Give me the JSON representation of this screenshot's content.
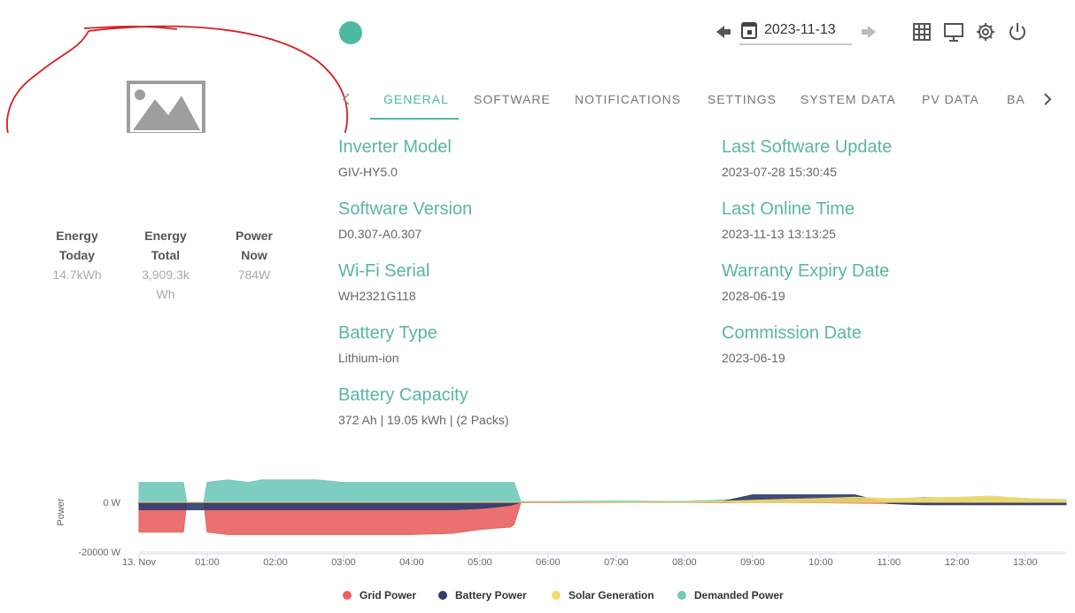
{
  "header": {
    "date": "2023-11-13"
  },
  "stats": [
    {
      "label": "Energy Today",
      "value": "14.7kWh"
    },
    {
      "label": "Energy Total",
      "value": "3,909.3kWh"
    },
    {
      "label": "Power Now",
      "value": "784W"
    }
  ],
  "tabs": [
    "GENERAL",
    "SOFTWARE",
    "NOTIFICATIONS",
    "SETTINGS",
    "SYSTEM DATA",
    "PV DATA",
    "BA"
  ],
  "info": {
    "left": [
      {
        "label": "Inverter Model",
        "value": "GIV-HY5.0"
      },
      {
        "label": "Software Version",
        "value": "D0.307-A0.307"
      },
      {
        "label": "Wi-Fi Serial",
        "value": "WH2321G118"
      },
      {
        "label": "Battery Type",
        "value": "Lithium-ion"
      },
      {
        "label": "Battery Capacity",
        "value": "372 Ah | 19.05 kWh | (2 Packs)"
      }
    ],
    "right": [
      {
        "label": "Last Software Update",
        "value": "2023-07-28 15:30:45"
      },
      {
        "label": "Last Online Time",
        "value": "2023-11-13 13:13:25"
      },
      {
        "label": "Warranty Expiry Date",
        "value": "2028-06-19"
      },
      {
        "label": "Commission Date",
        "value": "2023-06-19"
      }
    ]
  },
  "chart_data": {
    "type": "area",
    "y_label": "Power",
    "xlim": [
      0,
      13.6
    ],
    "xticks": [
      {
        "value": 0,
        "label": "13. Nov"
      },
      {
        "value": 1,
        "label": "01:00"
      },
      {
        "value": 2,
        "label": "02:00"
      },
      {
        "value": 3,
        "label": "03:00"
      },
      {
        "value": 4,
        "label": "04:00"
      },
      {
        "value": 5,
        "label": "05:00"
      },
      {
        "value": 6,
        "label": "06:00"
      },
      {
        "value": 7,
        "label": "07:00"
      },
      {
        "value": 8,
        "label": "08:00"
      },
      {
        "value": 9,
        "label": "09:00"
      },
      {
        "value": 10,
        "label": "10:00"
      },
      {
        "value": 11,
        "label": "11:00"
      },
      {
        "value": 12,
        "label": "12:00"
      },
      {
        "value": 13,
        "label": "13:00"
      }
    ],
    "ylim": [
      -20000,
      10000
    ],
    "yticks": [
      {
        "value": -20000,
        "label": "-20000 W"
      },
      {
        "value": 0,
        "label": "0 W"
      }
    ],
    "grid": true,
    "x": [
      0,
      0.25,
      0.5,
      0.65,
      0.7,
      0.95,
      1.0,
      1.3,
      1.6,
      1.8,
      2.0,
      2.6,
      3.0,
      4.0,
      4.6,
      5.0,
      5.2,
      5.45,
      5.5,
      5.6,
      6.0,
      7.0,
      8.0,
      8.5,
      9.0,
      9.5,
      10.0,
      10.5,
      11.0,
      11.5,
      12.0,
      12.5,
      13.0,
      13.6
    ],
    "series": [
      {
        "name": "Demanded Power",
        "color": "#6fc9b9",
        "values": [
          8000,
          8000,
          8000,
          8000,
          0,
          0,
          8000,
          9000,
          8000,
          9000,
          9000,
          9000,
          8000,
          8000,
          8000,
          8000,
          8000,
          8000,
          8000,
          300,
          300,
          500,
          300,
          800,
          1500,
          1500,
          1500,
          1500,
          1000,
          2000,
          1500,
          2000,
          1500,
          1000
        ]
      },
      {
        "name": "Grid Power",
        "color": "#e8625f",
        "values": [
          -12000,
          -12000,
          -12000,
          -12000,
          0,
          0,
          -12000,
          -13000,
          -13000,
          -13000,
          -13000,
          -13000,
          -13000,
          -13000,
          -12500,
          -11000,
          -10500,
          -10000,
          -9000,
          -200,
          -200,
          -100,
          -100,
          -200,
          -100,
          -100,
          -200,
          -300,
          -500,
          -800,
          -500,
          -800,
          -500,
          -500
        ]
      },
      {
        "name": "Battery Power",
        "color": "#2f3a6e",
        "values": [
          -3000,
          -3000,
          -3000,
          -3000,
          -3000,
          -3000,
          -3000,
          -3000,
          -3000,
          -3000,
          -3000,
          -3000,
          -3000,
          -3000,
          -3000,
          -2500,
          -2000,
          -1200,
          -800,
          0,
          0,
          0,
          0,
          0,
          3000,
          3000,
          3000,
          3000,
          -500,
          -1000,
          -1000,
          -1000,
          -1000,
          -1000
        ]
      },
      {
        "name": "Solar Generation",
        "color": "#f2d96b",
        "values": [
          0,
          0,
          0,
          0,
          0,
          0,
          0,
          0,
          0,
          0,
          0,
          0,
          0,
          0,
          0,
          0,
          0,
          0,
          0,
          0,
          0,
          0,
          0,
          300,
          800,
          1200,
          1500,
          2000,
          1500,
          1800,
          2000,
          2500,
          1500,
          800
        ]
      }
    ]
  }
}
